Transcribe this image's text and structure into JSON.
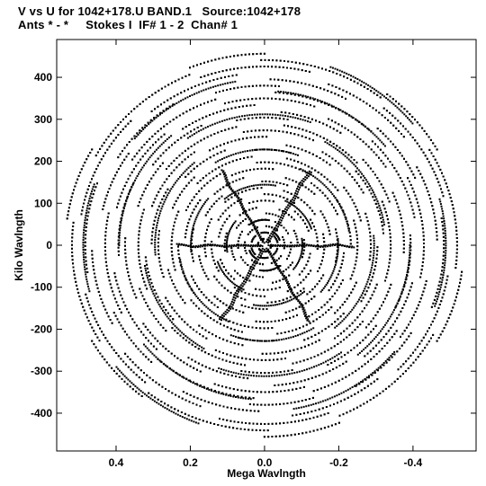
{
  "header": {
    "line1": "V vs U for 1042+178.U BAND.1   Source:1042+178",
    "line2": "Ants * - *     Stokes I  IF# 1 - 2  Chan# 1"
  },
  "chart_data": {
    "type": "scatter",
    "title": "V vs U for 1042+178.U BAND.1   Source:1042+178",
    "subtitle": "Ants * - *     Stokes I  IF# 1 - 2  Chan# 1",
    "xlabel": "Mega Wavlngth",
    "ylabel": "Kilo Wavlngth",
    "x_units": "Mega wavelengths (axis reversed, decreasing to the right)",
    "y_units": "Kilo wavelengths",
    "xlim": [
      0.56,
      -0.57
    ],
    "ylim": [
      -490,
      490
    ],
    "xticks": [
      0.4,
      0.2,
      0.0,
      -0.2,
      -0.4
    ],
    "xtick_labels": [
      "0.4",
      "0.2",
      "0.0",
      "-0.2",
      "-0.4"
    ],
    "yticks": [
      400,
      300,
      200,
      100,
      0,
      -100,
      -200,
      -300,
      -400
    ],
    "ytick_labels": [
      "400",
      "300",
      "200",
      "100",
      "0",
      "-100",
      "-200",
      "-300",
      "-400"
    ],
    "marker": "dot",
    "marker_color": "#000000",
    "grid": false,
    "legend": "none",
    "description_of_points": "Symmetric u-v coverage: many concentric elliptical arc tracks about the origin forming a six-armed star/pinwheel pattern; outer arms reach about u=±0.55 Mλ and v=±460 kλ.",
    "series": [
      {
        "name": "",
        "arcs": [
          {
            "radius_frac": 0.08,
            "start_deg": 20,
            "span_deg": 40
          },
          {
            "radius_frac": 0.13,
            "start_deg": 80,
            "span_deg": 45
          },
          {
            "radius_frac": 0.19,
            "start_deg": 140,
            "span_deg": 50
          },
          {
            "radius_frac": 0.25,
            "start_deg": 200,
            "span_deg": 45
          },
          {
            "radius_frac": 0.31,
            "start_deg": 260,
            "span_deg": 50
          },
          {
            "radius_frac": 0.37,
            "start_deg": 320,
            "span_deg": 45
          },
          {
            "radius_frac": 0.43,
            "start_deg": 10,
            "span_deg": 55
          },
          {
            "radius_frac": 0.49,
            "start_deg": 70,
            "span_deg": 50
          },
          {
            "radius_frac": 0.55,
            "start_deg": 130,
            "span_deg": 55
          },
          {
            "radius_frac": 0.61,
            "start_deg": 190,
            "span_deg": 50
          },
          {
            "radius_frac": 0.67,
            "start_deg": 250,
            "span_deg": 55
          },
          {
            "radius_frac": 0.73,
            "start_deg": 310,
            "span_deg": 50
          },
          {
            "radius_frac": 0.79,
            "start_deg": 40,
            "span_deg": 45
          },
          {
            "radius_frac": 0.85,
            "start_deg": 100,
            "span_deg": 40
          },
          {
            "radius_frac": 0.91,
            "start_deg": 160,
            "span_deg": 35
          },
          {
            "radius_frac": 0.97,
            "start_deg": 220,
            "span_deg": 30
          }
        ],
        "spokes_deg": [
          60,
          120,
          180,
          240,
          300,
          360
        ]
      }
    ]
  }
}
